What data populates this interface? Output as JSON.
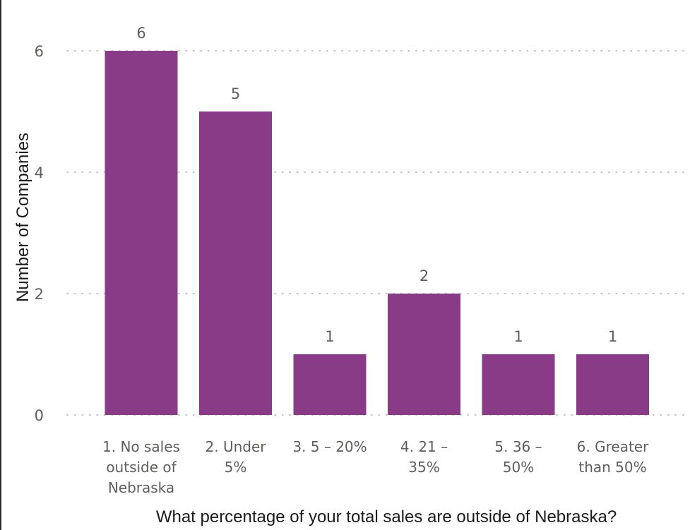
{
  "chart_data": {
    "type": "bar",
    "title": "",
    "xlabel": "What percentage of your total sales are outside of Nebraska?",
    "ylabel": "Number of Companies",
    "categories": [
      "1. No sales outside of Nebraska",
      "2. Under 5%",
      "3. 5 – 20%",
      "4. 21 – 35%",
      "5. 36 – 50%",
      "6. Greater than 50%"
    ],
    "category_lines": [
      [
        "1. No sales",
        "outside of",
        "Nebraska"
      ],
      [
        "2. Under",
        "5%"
      ],
      [
        "3. 5 – 20%"
      ],
      [
        "4. 21 –",
        "35%"
      ],
      [
        "5. 36 –",
        "50%"
      ],
      [
        "6. Greater",
        "than 50%"
      ]
    ],
    "values": [
      6,
      5,
      1,
      2,
      1,
      1
    ],
    "ylim": [
      0,
      7
    ],
    "yticks": [
      0,
      2,
      4,
      6
    ],
    "grid": true,
    "data_labels": true,
    "bar_color": "#8a3b87"
  }
}
